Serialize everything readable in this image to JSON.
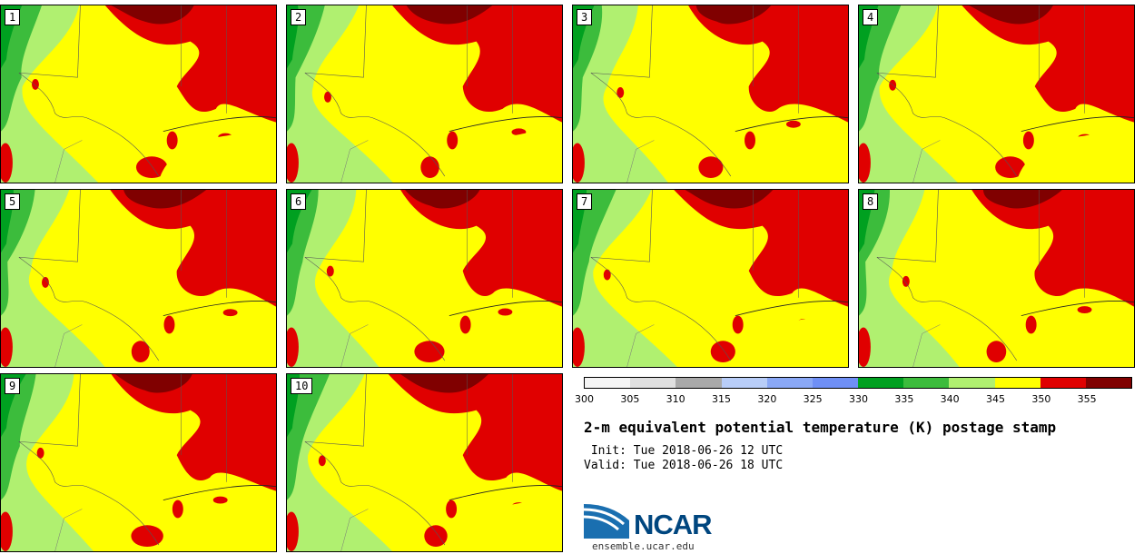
{
  "figure": {
    "title": "2-m equivalent potential temperature (K) postage stamp",
    "init_label": " Init: Tue 2018-06-26 12 UTC",
    "valid_label": "Valid: Tue 2018-06-26 18 UTC"
  },
  "members": [
    "1",
    "2",
    "3",
    "4",
    "5",
    "6",
    "7",
    "8",
    "9",
    "10"
  ],
  "colorbar": {
    "ticks": [
      "300",
      "305",
      "310",
      "315",
      "320",
      "325",
      "330",
      "335",
      "340",
      "345",
      "350",
      "355"
    ],
    "colors": [
      "#f5f5f5",
      "#e0e0e0",
      "#a9a9a9",
      "#b8cdf8",
      "#8aa8f6",
      "#6f8ff5",
      "#00a020",
      "#3cbc3c",
      "#b0f070",
      "#ffff00",
      "#e00000",
      "#800000"
    ]
  },
  "branding": {
    "logo_text": "NCAR",
    "url": "ensemble.ucar.edu"
  }
}
